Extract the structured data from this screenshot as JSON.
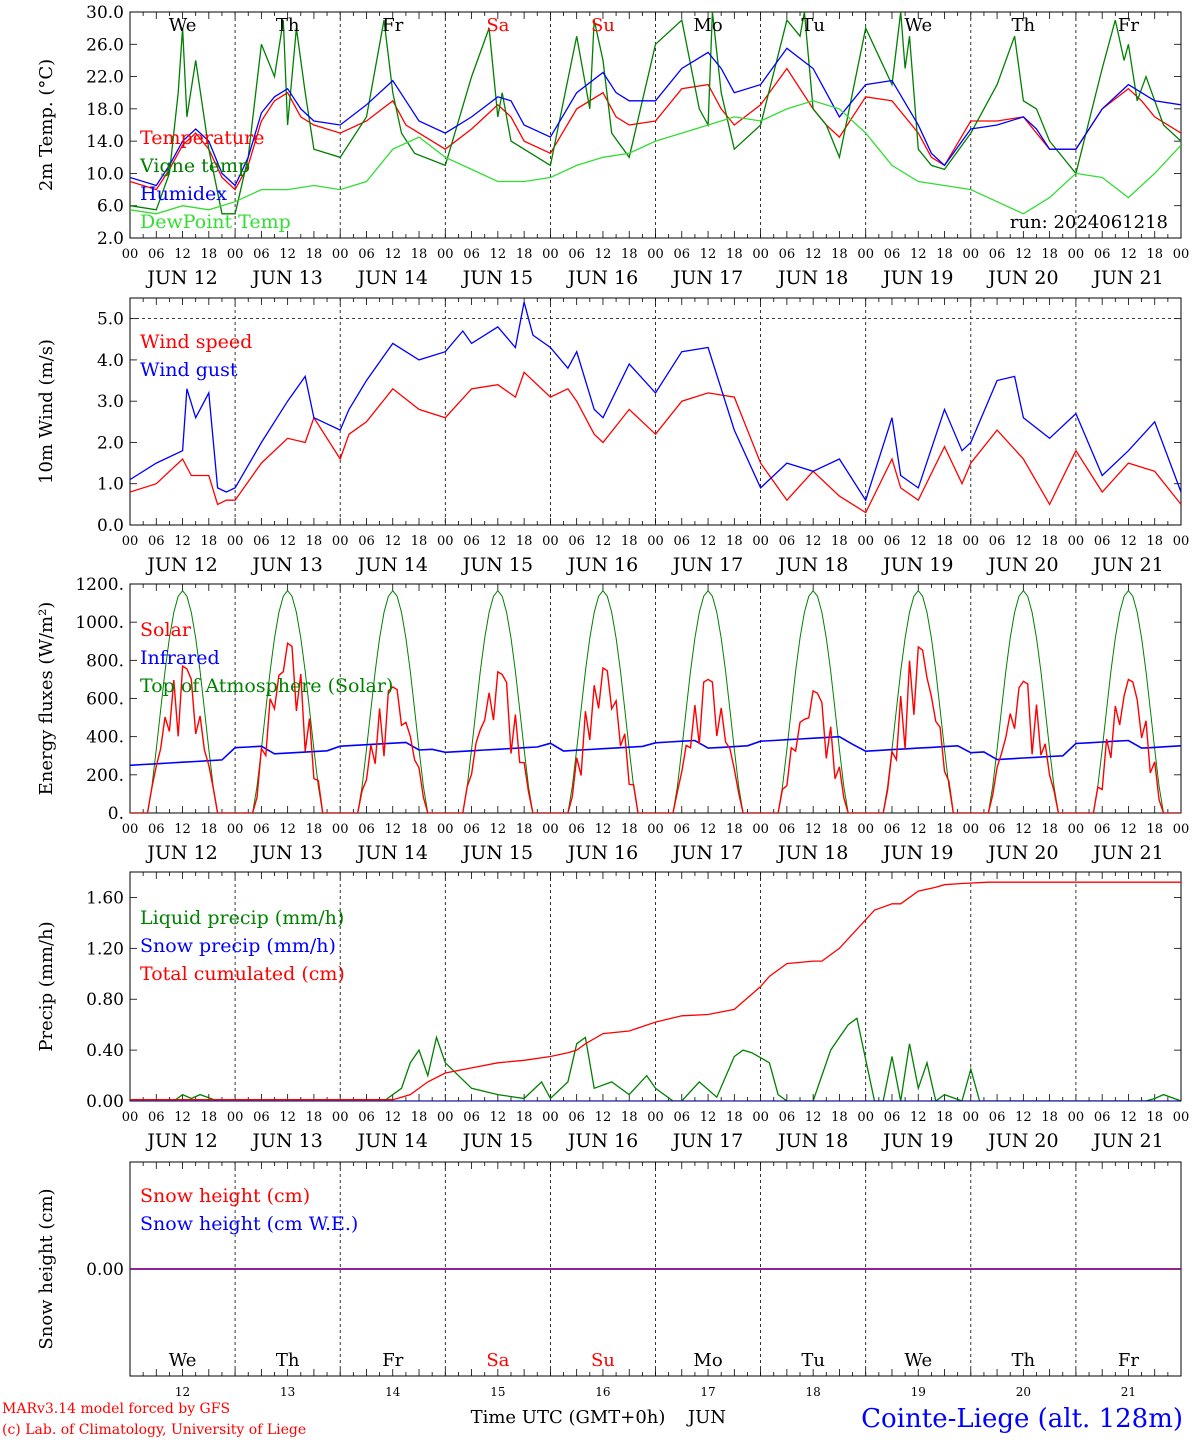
{
  "meta": {
    "model_note": "MARv3.14 model forced by GFS",
    "copyright": "(c) Lab. of Climatology, University of Liege",
    "xlabel": "Time UTC (GMT+0h)",
    "month": "JUN",
    "station": "Cointe-Liege (alt. 128m)"
  },
  "days": [
    "We",
    "Th",
    "Fr",
    "Sa",
    "Su",
    "Mo",
    "Tu",
    "We",
    "Th",
    "Fr"
  ],
  "weekend_indices": [
    3,
    4
  ],
  "dates": [
    "JUN 12",
    "JUN 13",
    "JUN 14",
    "JUN 15",
    "JUN 16",
    "JUN 17",
    "JUN 18",
    "JUN 19",
    "JUN 20",
    "JUN 21"
  ],
  "day_numbers": [
    "12",
    "13",
    "14",
    "15",
    "16",
    "17",
    "18",
    "19",
    "20",
    "21"
  ],
  "hour_labels": [
    "00",
    "06",
    "12",
    "18"
  ],
  "colors": {
    "red": "#ff0000",
    "green": "#008000",
    "blue": "#0000ff",
    "lightgreen": "#33dd33",
    "weekend": "#ff0000"
  },
  "chart_data": [
    {
      "type": "line",
      "ylabel": "2m Temp. (°C)",
      "ylim": [
        2,
        30
      ],
      "yticks": [
        "2.0",
        "6.0",
        "10.0",
        "14.0",
        "18.0",
        "22.0",
        "26.0",
        "30.0"
      ],
      "run_label": "run: 2024061218",
      "x_unit": "hours since JUN 12 00 UTC",
      "xlim": [
        0,
        240
      ],
      "series": [
        {
          "name": "Temperature",
          "color": "#ff0000",
          "x": [
            0,
            6,
            9,
            12,
            15,
            18,
            21,
            24,
            27,
            30,
            33,
            36,
            39,
            42,
            48,
            54,
            60,
            63,
            66,
            72,
            78,
            84,
            87,
            90,
            96,
            102,
            108,
            111,
            114,
            120,
            126,
            132,
            135,
            138,
            144,
            150,
            156,
            159,
            162,
            168,
            174,
            180,
            183,
            186,
            192,
            198,
            204,
            207,
            210,
            216,
            222,
            228,
            231,
            234,
            240
          ],
          "y": [
            9,
            8,
            10.5,
            13.5,
            15,
            13,
            9.5,
            8,
            11,
            16.5,
            19,
            20,
            17,
            16,
            15,
            16.5,
            19,
            16,
            15,
            13,
            15.5,
            18.5,
            17,
            14,
            12.5,
            18,
            20,
            17,
            16,
            16.5,
            20.5,
            21,
            18,
            16,
            18.5,
            23,
            18,
            16,
            14.5,
            19.5,
            19,
            15,
            12,
            11,
            16.5,
            16.5,
            17,
            15,
            13,
            13,
            18,
            20.5,
            19,
            17,
            15
          ]
        },
        {
          "name": "Vigne temp",
          "color": "#008000",
          "x": [
            0,
            6,
            9,
            11,
            12,
            13,
            15,
            18,
            21,
            24,
            27,
            30,
            33,
            35,
            36,
            38,
            40,
            42,
            48,
            54,
            58,
            60,
            62,
            65,
            72,
            78,
            82,
            84,
            85,
            87,
            90,
            96,
            102,
            105,
            106,
            108,
            110,
            114,
            120,
            126,
            130,
            132,
            133,
            135,
            138,
            144,
            150,
            153,
            154,
            156,
            159,
            162,
            168,
            174,
            176,
            177,
            178,
            180,
            183,
            186,
            192,
            198,
            202,
            204,
            207,
            210,
            216,
            222,
            225,
            227,
            228,
            230,
            232,
            236,
            240
          ],
          "y": [
            6,
            5.5,
            10,
            20,
            28,
            17,
            24,
            13,
            5,
            5,
            12,
            26,
            22,
            29,
            16,
            28,
            20,
            13,
            12,
            17,
            29,
            20,
            15,
            12.5,
            11,
            22,
            28,
            17,
            20,
            14,
            13,
            11,
            27,
            18,
            29,
            24,
            15,
            12,
            26,
            29,
            18,
            16,
            30,
            20,
            13,
            16,
            29,
            27,
            30,
            18,
            16,
            12,
            28,
            21,
            30,
            23,
            27,
            13,
            11,
            10.5,
            15,
            21,
            27,
            19,
            18,
            14,
            10,
            23,
            29,
            24,
            26,
            19,
            22,
            16,
            14
          ]
        },
        {
          "name": "Humidex",
          "color": "#0000ff",
          "x": [
            0,
            6,
            9,
            12,
            15,
            18,
            21,
            24,
            27,
            30,
            33,
            36,
            39,
            42,
            48,
            54,
            60,
            63,
            66,
            72,
            78,
            84,
            87,
            90,
            96,
            102,
            108,
            111,
            114,
            120,
            126,
            132,
            135,
            138,
            144,
            150,
            156,
            159,
            162,
            168,
            174,
            180,
            183,
            186,
            192,
            198,
            204,
            207,
            210,
            216,
            222,
            228,
            231,
            234,
            240
          ],
          "y": [
            9.5,
            8.5,
            11,
            14,
            15.5,
            14,
            10,
            8.5,
            12,
            17.5,
            19.5,
            20.5,
            18,
            16.5,
            16,
            18.5,
            21.5,
            19,
            16.5,
            15,
            17,
            19.5,
            19,
            16,
            14.5,
            20,
            22.5,
            20,
            19,
            19,
            23,
            25,
            23,
            20,
            21,
            25.5,
            23,
            20,
            17,
            21,
            21.5,
            16,
            12.5,
            11,
            15.5,
            16,
            17,
            15.5,
            13,
            13,
            18,
            21,
            20,
            19,
            18.5
          ]
        },
        {
          "name": "DewPoint Temp",
          "color": "#33dd33",
          "x": [
            0,
            6,
            12,
            18,
            24,
            30,
            36,
            42,
            48,
            54,
            60,
            66,
            72,
            78,
            84,
            90,
            96,
            102,
            108,
            114,
            120,
            126,
            132,
            138,
            144,
            150,
            156,
            162,
            168,
            174,
            180,
            186,
            192,
            198,
            204,
            210,
            216,
            222,
            228,
            234,
            240
          ],
          "y": [
            5.5,
            5,
            6,
            5.5,
            6.5,
            8,
            8,
            8.5,
            8,
            9,
            13,
            14.5,
            12,
            10.5,
            9,
            9,
            9.5,
            11,
            12,
            12.5,
            14,
            15,
            16,
            17,
            16.5,
            18,
            19,
            18,
            15,
            11,
            9,
            8.5,
            8,
            6.5,
            5,
            7,
            10,
            9.5,
            7,
            10,
            13.5
          ]
        }
      ]
    },
    {
      "type": "line",
      "ylabel": "10m Wind (m/s)",
      "ylim": [
        0,
        5.5
      ],
      "yticks": [
        "0.0",
        "1.0",
        "2.0",
        "3.0",
        "4.0",
        "5.0"
      ],
      "reference_line": 5.0,
      "xlim": [
        0,
        240
      ],
      "series": [
        {
          "name": "Wind speed",
          "color": "#ff0000",
          "x": [
            0,
            6,
            12,
            14,
            18,
            20,
            22,
            24,
            30,
            36,
            40,
            42,
            48,
            50,
            54,
            60,
            66,
            72,
            78,
            84,
            88,
            90,
            96,
            100,
            102,
            106,
            108,
            114,
            120,
            126,
            132,
            138,
            144,
            150,
            156,
            162,
            168,
            174,
            176,
            180,
            186,
            190,
            192,
            198,
            204,
            210,
            216,
            222,
            228,
            234,
            240
          ],
          "y": [
            0.8,
            1.0,
            1.6,
            1.2,
            1.2,
            0.5,
            0.6,
            0.6,
            1.5,
            2.1,
            2.0,
            2.6,
            1.6,
            2.2,
            2.5,
            3.3,
            2.8,
            2.6,
            3.3,
            3.4,
            3.1,
            3.7,
            3.1,
            3.3,
            3.0,
            2.2,
            2.0,
            2.8,
            2.2,
            3.0,
            3.2,
            3.1,
            1.5,
            0.6,
            1.3,
            0.7,
            0.3,
            1.6,
            0.9,
            0.6,
            1.9,
            1.0,
            1.5,
            2.3,
            1.6,
            0.5,
            1.8,
            0.8,
            1.5,
            1.3,
            0.5
          ]
        },
        {
          "name": "Wind gust",
          "color": "#0000ff",
          "x": [
            0,
            6,
            12,
            13,
            15,
            18,
            20,
            22,
            24,
            30,
            36,
            40,
            42,
            48,
            50,
            54,
            60,
            66,
            72,
            76,
            78,
            84,
            88,
            90,
            92,
            96,
            100,
            102,
            106,
            108,
            114,
            120,
            126,
            132,
            138,
            144,
            150,
            156,
            162,
            168,
            174,
            176,
            180,
            186,
            190,
            192,
            198,
            202,
            204,
            210,
            216,
            222,
            228,
            234,
            240
          ],
          "y": [
            1.1,
            1.5,
            1.8,
            3.3,
            2.6,
            3.2,
            0.9,
            0.8,
            0.9,
            2.0,
            3.0,
            3.6,
            2.6,
            2.3,
            2.8,
            3.5,
            4.4,
            4.0,
            4.2,
            4.7,
            4.4,
            4.8,
            4.3,
            5.4,
            4.6,
            4.3,
            3.8,
            4.2,
            2.8,
            2.6,
            3.9,
            3.2,
            4.2,
            4.3,
            2.3,
            0.9,
            1.5,
            1.3,
            1.6,
            0.6,
            2.6,
            1.2,
            0.9,
            2.8,
            1.8,
            2.0,
            3.5,
            3.6,
            2.6,
            2.1,
            2.7,
            1.2,
            1.8,
            2.5,
            0.8
          ]
        }
      ]
    },
    {
      "type": "line",
      "ylabel": "Energy fluxes (W/m²)",
      "ylim": [
        0,
        1200
      ],
      "yticks": [
        "0.",
        "200.",
        "400.",
        "600.",
        "800.",
        "1000.",
        "1200."
      ],
      "xlim": [
        0,
        240
      ],
      "toa_peak": 1165,
      "solar_daily_peaks": [
        770,
        890,
        660,
        740,
        760,
        700,
        640,
        870,
        690,
        700
      ],
      "infrared_level": [
        270,
        330,
        350,
        330,
        345,
        360,
        380,
        340,
        300,
        360
      ],
      "series": [
        {
          "name": "Solar",
          "color": "#ff0000"
        },
        {
          "name": "Infrared",
          "color": "#0000ff"
        },
        {
          "name": "Top of Atmosphere (Solar)",
          "color": "#008000"
        }
      ]
    },
    {
      "type": "line",
      "ylabel": "Precip (mm/h)",
      "ylim": [
        0,
        1.8
      ],
      "yticks": [
        "0.00",
        "0.40",
        "0.80",
        "1.20",
        "1.60"
      ],
      "xlim": [
        0,
        240
      ],
      "series": [
        {
          "name": "Liquid precip (mm/h)",
          "color": "#008000",
          "x": [
            0,
            10,
            12,
            14,
            16,
            20,
            48,
            58,
            62,
            64,
            66,
            68,
            70,
            72,
            78,
            84,
            90,
            94,
            96,
            100,
            102,
            104,
            106,
            110,
            114,
            118,
            120,
            124,
            126,
            130,
            134,
            138,
            140,
            142,
            146,
            148,
            150,
            156,
            160,
            162,
            164,
            166,
            170,
            172,
            174,
            176,
            178,
            180,
            182,
            184,
            186,
            190,
            192,
            194,
            200,
            232,
            234,
            236,
            240
          ],
          "y": [
            0,
            0,
            0.05,
            0.02,
            0.05,
            0,
            0,
            0,
            0.1,
            0.3,
            0.4,
            0.2,
            0.5,
            0.3,
            0.1,
            0.05,
            0.02,
            0.15,
            0.02,
            0.15,
            0.45,
            0.5,
            0.1,
            0.15,
            0.05,
            0.2,
            0.1,
            0,
            0,
            0.15,
            0.03,
            0.35,
            0.4,
            0.38,
            0.3,
            0.05,
            0,
            0,
            0.4,
            0.5,
            0.6,
            0.65,
            0,
            0,
            0.35,
            0,
            0.45,
            0.1,
            0.3,
            0,
            0.05,
            0,
            0.25,
            0,
            0,
            0,
            0.02,
            0.05,
            0
          ]
        },
        {
          "name": "Snow precip (mm/h)",
          "color": "#0000ff",
          "x": [
            0,
            240
          ],
          "y": [
            0,
            0
          ]
        },
        {
          "name": "Total cumulated (cm)",
          "color": "#ff0000",
          "x": [
            0,
            60,
            64,
            68,
            72,
            78,
            84,
            90,
            96,
            100,
            102,
            104,
            108,
            114,
            120,
            126,
            132,
            138,
            144,
            146,
            150,
            156,
            158,
            162,
            166,
            170,
            174,
            176,
            180,
            184,
            186,
            190,
            196,
            240
          ],
          "y": [
            0.01,
            0.01,
            0.05,
            0.15,
            0.22,
            0.26,
            0.3,
            0.32,
            0.35,
            0.38,
            0.4,
            0.45,
            0.53,
            0.55,
            0.62,
            0.67,
            0.68,
            0.72,
            0.9,
            0.98,
            1.08,
            1.1,
            1.1,
            1.2,
            1.35,
            1.5,
            1.55,
            1.55,
            1.65,
            1.68,
            1.7,
            1.71,
            1.72,
            1.72
          ]
        }
      ]
    },
    {
      "type": "line",
      "ylabel": "Snow height (cm)",
      "ylim": [
        -1,
        1
      ],
      "yticks": [
        "0.00"
      ],
      "xlim": [
        0,
        240
      ],
      "series": [
        {
          "name": "Snow height (cm)",
          "color": "#ff0000",
          "x": [
            0,
            240
          ],
          "y": [
            0,
            0
          ]
        },
        {
          "name": "Snow height (cm W.E.)",
          "color": "#0000ff",
          "x": [
            0,
            240
          ],
          "y": [
            0,
            0
          ]
        }
      ]
    }
  ]
}
